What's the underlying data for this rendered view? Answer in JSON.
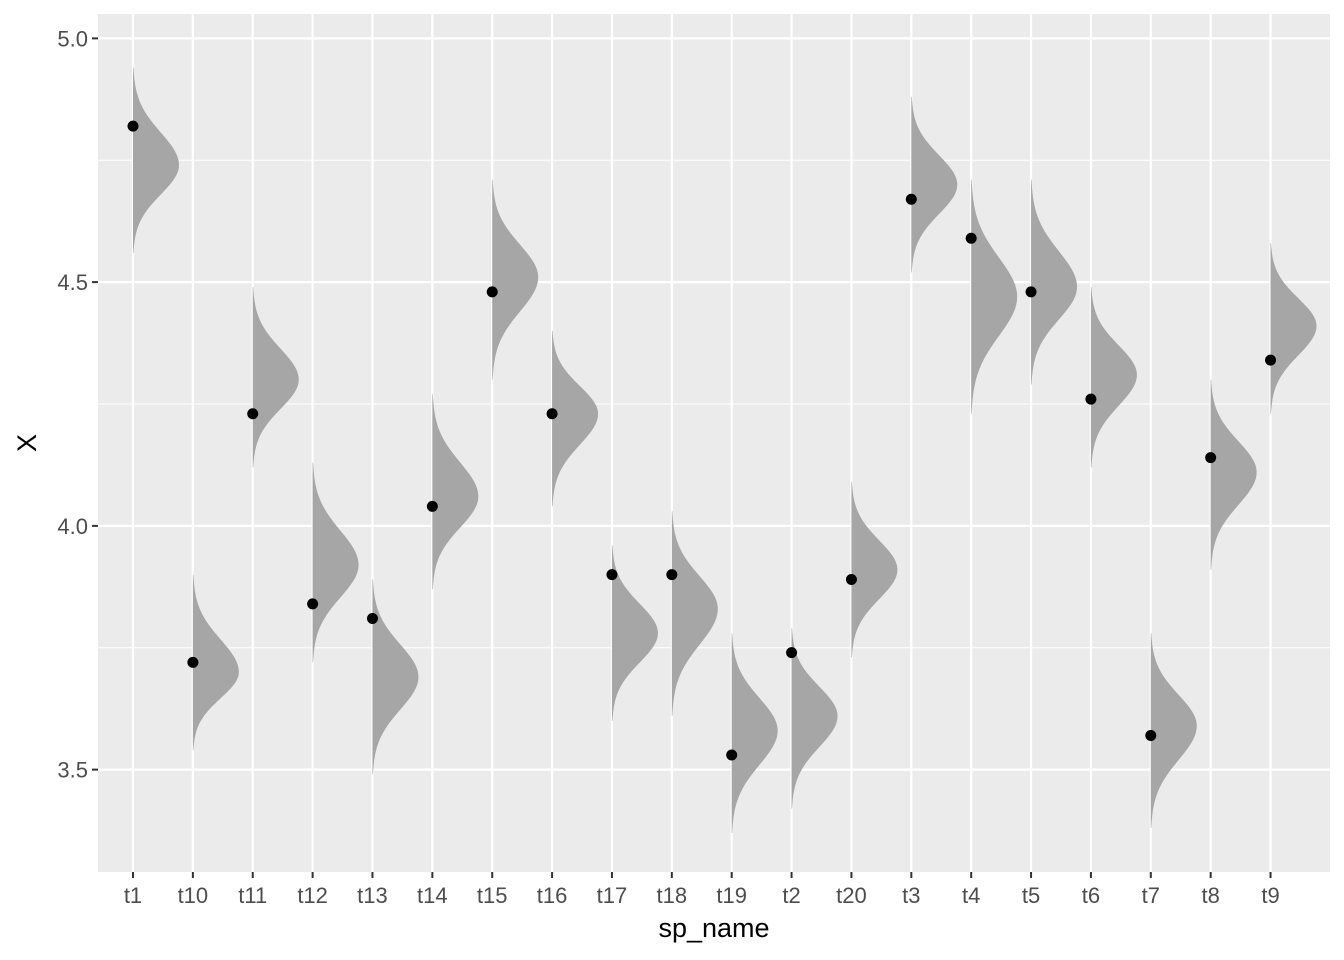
{
  "chart_data": {
    "type": "half-violin with points",
    "xlabel": "sp_name",
    "ylabel": "X",
    "categories": [
      "t1",
      "t10",
      "t11",
      "t12",
      "t13",
      "t14",
      "t15",
      "t16",
      "t17",
      "t18",
      "t19",
      "t2",
      "t20",
      "t3",
      "t4",
      "t5",
      "t6",
      "t7",
      "t8",
      "t9"
    ],
    "points": [
      4.82,
      3.72,
      4.23,
      3.84,
      3.81,
      4.04,
      4.48,
      4.23,
      3.9,
      3.9,
      3.53,
      3.74,
      3.89,
      4.67,
      4.59,
      4.48,
      4.26,
      3.57,
      4.14,
      4.34
    ],
    "densities": [
      {
        "mode": 4.74,
        "low": 4.56,
        "high": 4.94
      },
      {
        "mode": 3.7,
        "low": 3.54,
        "high": 3.9
      },
      {
        "mode": 4.3,
        "low": 4.12,
        "high": 4.49
      },
      {
        "mode": 3.92,
        "low": 3.72,
        "high": 4.13
      },
      {
        "mode": 3.69,
        "low": 3.49,
        "high": 3.89
      },
      {
        "mode": 4.06,
        "low": 3.87,
        "high": 4.27
      },
      {
        "mode": 4.51,
        "low": 4.3,
        "high": 4.71
      },
      {
        "mode": 4.23,
        "low": 4.04,
        "high": 4.4
      },
      {
        "mode": 3.78,
        "low": 3.6,
        "high": 3.96
      },
      {
        "mode": 3.83,
        "low": 3.61,
        "high": 4.03
      },
      {
        "mode": 3.58,
        "low": 3.37,
        "high": 3.78
      },
      {
        "mode": 3.61,
        "low": 3.42,
        "high": 3.79
      },
      {
        "mode": 3.91,
        "low": 3.73,
        "high": 4.09
      },
      {
        "mode": 4.7,
        "low": 4.52,
        "high": 4.88
      },
      {
        "mode": 4.47,
        "low": 4.23,
        "high": 4.71
      },
      {
        "mode": 4.49,
        "low": 4.29,
        "high": 4.71
      },
      {
        "mode": 4.31,
        "low": 4.12,
        "high": 4.49
      },
      {
        "mode": 3.59,
        "low": 3.38,
        "high": 3.78
      },
      {
        "mode": 4.11,
        "low": 3.91,
        "high": 4.3
      },
      {
        "mode": 4.41,
        "low": 4.23,
        "high": 4.58
      }
    ],
    "ylim": [
      3.29,
      5.05
    ],
    "yticks": [
      3.5,
      4.0,
      4.5,
      5.0
    ],
    "ytick_labels": [
      "3.5",
      "4.0",
      "4.5",
      "5.0"
    ],
    "grid": true,
    "colors": {
      "panel": "#ebebeb",
      "grid_major": "#ffffff",
      "violin": "#a6a6a6",
      "point": "#000000",
      "tick_text": "#4d4d4d",
      "tick_mark": "#333333"
    }
  }
}
